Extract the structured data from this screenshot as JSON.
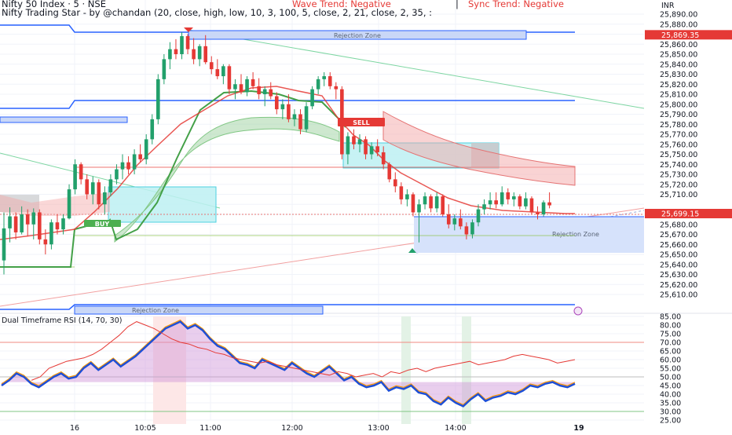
{
  "header": {
    "symbol_line": "Nifty 50 Index · 5 · NSE",
    "indicator_line": "Nifty Trading Star - by @chandan (20, close, high, low, 10, 3, 100, 5, close, 2, 21, close, 2, 35, :",
    "wave_trend": "Wave Trend: Negative",
    "separator": "|",
    "sync_trend": "Sync Trend: Negative"
  },
  "price_axis": {
    "currency": "INR",
    "ticks": [
      "25,890.00",
      "25,880.00",
      "25,870.00",
      "25,860.00",
      "25,850.00",
      "25,840.00",
      "25,830.00",
      "25,820.00",
      "25,810.00",
      "25,800.00",
      "25,790.00",
      "25,780.00",
      "25,770.00",
      "25,760.00",
      "25,750.00",
      "25,740.00",
      "25,730.00",
      "25,720.00",
      "25,710.00",
      "25,700.00",
      "25,690.00",
      "25,680.00",
      "25,670.00",
      "25,660.00",
      "25,650.00",
      "25,640.00",
      "25,630.00",
      "25,620.00",
      "25,610.00"
    ],
    "high_label": "25,869.35",
    "last_label": "25,699.15"
  },
  "rsi_axis": {
    "ticks": [
      "85.00",
      "80.00",
      "75.00",
      "70.00",
      "65.00",
      "60.00",
      "55.00",
      "50.00",
      "45.00",
      "40.00",
      "35.00",
      "30.00",
      "25.00"
    ]
  },
  "time_axis": {
    "labels": [
      "16",
      "10:05",
      "11:00",
      "12:00",
      "13:00",
      "14:00",
      "19"
    ]
  },
  "zones": {
    "rejection_top": "Rejection Zone",
    "rejection_bottom": "Rejection Zone",
    "rejection_right": "Rejection Zone"
  },
  "signals": {
    "buy": "BUY",
    "sell": "SELL"
  },
  "rsi_panel": {
    "title": "Dual Timeframe RSI (14, 70, 30)"
  },
  "colors": {
    "up": "#22a06b",
    "down": "#e53935",
    "zone_blue": "#2962ff",
    "cyan_box": "#4dd0e1",
    "rsi_fill": "#ce93d8",
    "rsi_line": "#1e4fd6"
  },
  "chart_data": [
    {
      "type": "candlestick",
      "title": "Nifty 50 Index · 5 · NSE",
      "ylim": [
        25605,
        25895
      ],
      "high_marker": 25869.35,
      "last_price": 25699.15,
      "ohlc": [
        [
          25644,
          25692,
          25630,
          25676
        ],
        [
          25676,
          25697,
          25662,
          25688
        ],
        [
          25688,
          25692,
          25665,
          25672
        ],
        [
          25672,
          25698,
          25670,
          25690
        ],
        [
          25690,
          25695,
          25668,
          25680
        ],
        [
          25680,
          25696,
          25665,
          25692
        ],
        [
          25692,
          25695,
          25660,
          25665
        ],
        [
          25665,
          25675,
          25650,
          25660
        ],
        [
          25660,
          25685,
          25655,
          25682
        ],
        [
          25682,
          25690,
          25670,
          25675
        ],
        [
          25675,
          25690,
          25670,
          25686
        ],
        [
          25686,
          25720,
          25685,
          25715
        ],
        [
          25715,
          25745,
          25710,
          25740
        ],
        [
          25740,
          25742,
          25720,
          25725
        ],
        [
          25725,
          25730,
          25705,
          25710
        ],
        [
          25710,
          25728,
          25700,
          25722
        ],
        [
          25722,
          25725,
          25695,
          25700
        ],
        [
          25700,
          25718,
          25690,
          25712
        ],
        [
          25712,
          25730,
          25708,
          25725
        ],
        [
          25725,
          25740,
          25720,
          25735
        ],
        [
          25735,
          25750,
          25725,
          25742
        ],
        [
          25742,
          25748,
          25730,
          25735
        ],
        [
          25735,
          25755,
          25730,
          25750
        ],
        [
          25750,
          25760,
          25742,
          25745
        ],
        [
          25745,
          25770,
          25740,
          25765
        ],
        [
          25765,
          25790,
          25760,
          25785
        ],
        [
          25785,
          25830,
          25780,
          25825
        ],
        [
          25825,
          25850,
          25820,
          25845
        ],
        [
          25845,
          25862,
          25835,
          25855
        ],
        [
          25855,
          25865,
          25845,
          25850
        ],
        [
          25850,
          25872,
          25845,
          25868
        ],
        [
          25868,
          25870,
          25850,
          25855
        ],
        [
          25855,
          25866,
          25840,
          25845
        ],
        [
          25845,
          25860,
          25838,
          25858
        ],
        [
          25858,
          25869,
          25840,
          25842
        ],
        [
          25842,
          25848,
          25830,
          25835
        ],
        [
          25835,
          25845,
          25825,
          25828
        ],
        [
          25828,
          25840,
          25820,
          25838
        ],
        [
          25838,
          25840,
          25810,
          25815
        ],
        [
          25815,
          25825,
          25805,
          25820
        ],
        [
          25820,
          25830,
          25810,
          25812
        ],
        [
          25812,
          25828,
          25808,
          25825
        ],
        [
          25825,
          25832,
          25815,
          25818
        ],
        [
          25818,
          25826,
          25805,
          25810
        ],
        [
          25810,
          25818,
          25798,
          25815
        ],
        [
          25815,
          25822,
          25805,
          25808
        ],
        [
          25808,
          25812,
          25790,
          25795
        ],
        [
          25795,
          25805,
          25785,
          25800
        ],
        [
          25800,
          25810,
          25782,
          25785
        ],
        [
          25785,
          25795,
          25778,
          25790
        ],
        [
          25790,
          25795,
          25770,
          25775
        ],
        [
          25775,
          25802,
          25772,
          25798
        ],
        [
          25798,
          25818,
          25795,
          25815
        ],
        [
          25815,
          25828,
          25810,
          25825
        ],
        [
          25825,
          25832,
          25818,
          25828
        ],
        [
          25828,
          25832,
          25815,
          25818
        ],
        [
          25818,
          25822,
          25805,
          25815
        ],
        [
          25815,
          25818,
          25745,
          25750
        ],
        [
          25750,
          25772,
          25740,
          25768
        ],
        [
          25768,
          25775,
          25755,
          25760
        ],
        [
          25760,
          25770,
          25752,
          25765
        ],
        [
          25765,
          25768,
          25745,
          25750
        ],
        [
          25750,
          25762,
          25745,
          25758
        ],
        [
          25758,
          25765,
          25748,
          25752
        ],
        [
          25752,
          25758,
          25735,
          25740
        ],
        [
          25740,
          25742,
          25722,
          25725
        ],
        [
          25725,
          25732,
          25712,
          25718
        ],
        [
          25718,
          25722,
          25700,
          25705
        ],
        [
          25705,
          25715,
          25698,
          25710
        ],
        [
          25710,
          25712,
          25688,
          25692
        ],
        [
          25692,
          25705,
          25662,
          25700
        ],
        [
          25700,
          25712,
          25695,
          25708
        ],
        [
          25708,
          25710,
          25692,
          25696
        ],
        [
          25696,
          25712,
          25692,
          25708
        ],
        [
          25708,
          25710,
          25688,
          25690
        ],
        [
          25690,
          25700,
          25676,
          25680
        ],
        [
          25680,
          25690,
          25674,
          25686
        ],
        [
          25686,
          25695,
          25675,
          25678
        ],
        [
          25678,
          25682,
          25665,
          25670
        ],
        [
          25670,
          25685,
          25666,
          25682
        ],
        [
          25682,
          25700,
          25678,
          25695
        ],
        [
          25695,
          25705,
          25690,
          25700
        ],
        [
          25700,
          25712,
          25695,
          25704
        ],
        [
          25704,
          25712,
          25696,
          25700
        ],
        [
          25700,
          25718,
          25698,
          25712
        ],
        [
          25712,
          25716,
          25700,
          25705
        ],
        [
          25705,
          25712,
          25698,
          25708
        ],
        [
          25708,
          25710,
          25695,
          25698
        ],
        [
          25698,
          25712,
          25695,
          25706
        ],
        [
          25706,
          25708,
          25690,
          25692
        ],
        [
          25692,
          25698,
          25685,
          25690
        ],
        [
          25690,
          25704,
          25688,
          25702
        ],
        [
          25702,
          25712,
          25696,
          25699
        ]
      ]
    },
    {
      "type": "line",
      "title": "Dual Timeframe RSI (14, 70, 30)",
      "ylim": [
        25,
        85
      ],
      "levels": [
        70,
        50,
        30
      ],
      "series": [
        {
          "values": [
            45,
            48,
            52,
            50,
            46,
            44,
            47,
            50,
            52,
            49,
            50,
            55,
            58,
            54,
            57,
            60,
            56,
            59,
            62,
            66,
            70,
            74,
            78,
            80,
            82,
            78,
            80,
            77,
            72,
            68,
            66,
            62,
            58,
            57,
            55,
            60,
            58,
            56,
            54,
            58,
            55,
            52,
            50,
            53,
            56,
            52,
            48,
            50,
            46,
            44,
            45,
            47,
            42,
            44,
            43,
            45,
            41,
            40,
            36,
            34,
            38,
            35,
            33,
            37,
            40,
            36,
            38,
            39,
            41,
            40,
            42,
            45,
            44,
            46,
            47,
            45,
            44,
            46
          ]
        },
        {
          "values": [
            48,
            50,
            55,
            57,
            59,
            60,
            61,
            63,
            66,
            70,
            74,
            79,
            82,
            80,
            78,
            75,
            72,
            70,
            69,
            67,
            66,
            64,
            63,
            61,
            60,
            59,
            58,
            59,
            57,
            56,
            55,
            54,
            53,
            52,
            51,
            53,
            52,
            50,
            51,
            52,
            50,
            53,
            52,
            54,
            55,
            53,
            55,
            56,
            57,
            58,
            59,
            57,
            58,
            59,
            60,
            62,
            63,
            62,
            61,
            60,
            58,
            59,
            60
          ]
        }
      ]
    }
  ]
}
